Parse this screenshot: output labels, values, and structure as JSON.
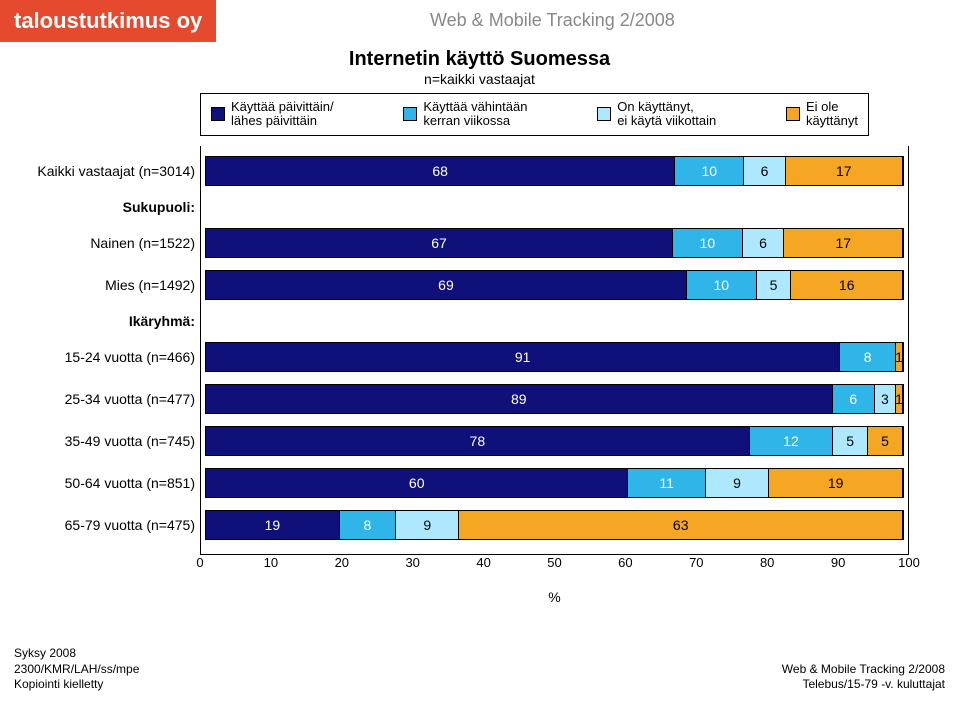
{
  "logo": "taloustutkimus oy",
  "header": "Web & Mobile Tracking 2/2008",
  "title": "Internetin käyttö Suomessa",
  "subtitle": "n=kaikki vastaajat",
  "legend": [
    {
      "label": "Käyttää päivittäin/\nlähes päivittäin",
      "color": "#10107a"
    },
    {
      "label": "Käyttää vähintään\nkerran viikossa",
      "color": "#2fb5e8"
    },
    {
      "label": "On käyttänyt,\nei käytä viikottain",
      "color": "#aee8ff"
    },
    {
      "label": "Ei ole\nkäyttänyt",
      "color": "#f5a623"
    }
  ],
  "colors": {
    "c0": "#10107a",
    "c1": "#2fb5e8",
    "c2": "#aee8ff",
    "c3": "#f5a623",
    "border": "#000000",
    "bg": "#ffffff"
  },
  "rows": [
    {
      "label": "Kaikki vastaajat (n=3014)",
      "values": [
        68,
        10,
        6,
        17
      ]
    },
    {
      "section": "Sukupuoli:"
    },
    {
      "label": "Nainen (n=1522)",
      "values": [
        67,
        10,
        6,
        17
      ]
    },
    {
      "label": "Mies (n=1492)",
      "values": [
        69,
        10,
        5,
        16
      ]
    },
    {
      "section": "Ikäryhmä:"
    },
    {
      "label": "15-24 vuotta (n=466)",
      "values": [
        91,
        8,
        0,
        1
      ]
    },
    {
      "label": "25-34 vuotta (n=477)",
      "values": [
        89,
        6,
        3,
        1
      ]
    },
    {
      "label": "35-49 vuotta (n=745)",
      "values": [
        78,
        12,
        5,
        5
      ]
    },
    {
      "label": "50-64 vuotta (n=851)",
      "values": [
        60,
        11,
        9,
        19
      ]
    },
    {
      "label": "65-79 vuotta (n=475)",
      "values": [
        19,
        8,
        9,
        63
      ]
    }
  ],
  "xaxis": {
    "min": 0,
    "max": 100,
    "step": 10,
    "label": "%"
  },
  "footer_left": [
    "Syksy 2008",
    "2300/KMR/LAH/ss/mpe",
    "Kopiointi kielletty"
  ],
  "footer_right": [
    "Web & Mobile Tracking 2/2008",
    "Telebus/15-79 -v. kuluttajat"
  ]
}
